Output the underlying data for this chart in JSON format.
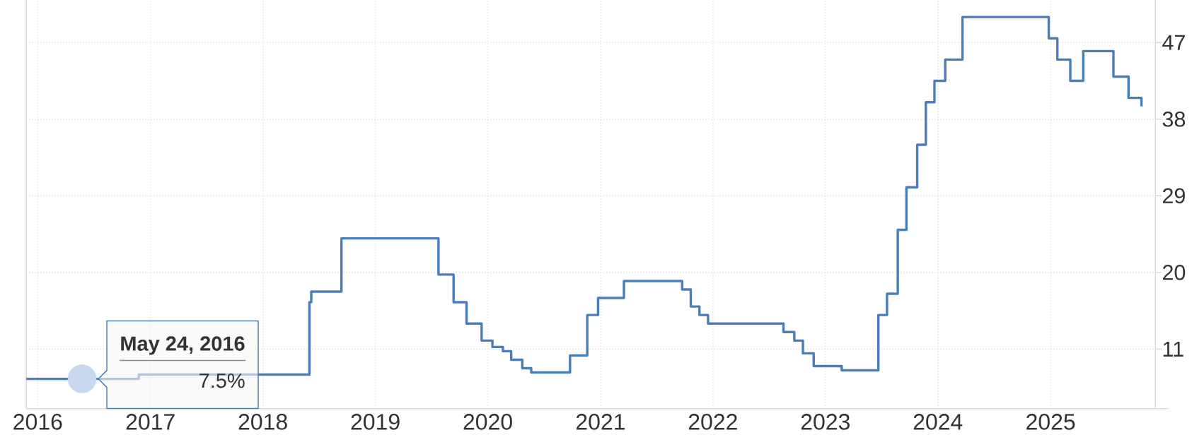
{
  "chart_data": {
    "type": "step",
    "xlim": [
      "2015-11-25",
      "2025-12-07"
    ],
    "xticks": [
      "2016",
      "2017",
      "2018",
      "2019",
      "2020",
      "2021",
      "2022",
      "2023",
      "2024",
      "2025"
    ],
    "ylim": [
      4,
      52
    ],
    "yticks": [
      11,
      20,
      29,
      38,
      47
    ],
    "grid": true,
    "series": [
      {
        "color": "#4a7ebb",
        "marker": "none",
        "line_style": "solid",
        "x": [
          "2015-11-25",
          "2016-11-24",
          "2018-06-01",
          "2018-06-07",
          "2018-09-13",
          "2019-07-25",
          "2019-09-12",
          "2019-10-24",
          "2019-12-12",
          "2020-01-16",
          "2020-02-19",
          "2020-03-17",
          "2020-04-22",
          "2020-05-21",
          "2020-09-24",
          "2020-11-19",
          "2020-12-24",
          "2021-03-18",
          "2021-09-23",
          "2021-10-21",
          "2021-11-18",
          "2021-12-16",
          "2022-08-18",
          "2022-09-22",
          "2022-10-20",
          "2022-11-24",
          "2023-02-23",
          "2023-06-22",
          "2023-07-20",
          "2023-08-24",
          "2023-09-21",
          "2023-10-26",
          "2023-11-23",
          "2023-12-21",
          "2024-01-25",
          "2024-03-21",
          "2024-12-26",
          "2025-01-23",
          "2025-03-06",
          "2025-04-17",
          "2025-07-24",
          "2025-09-11",
          "2025-10-23"
        ],
        "values": [
          7.5,
          8,
          16.5,
          17.75,
          24,
          19.75,
          16.5,
          14,
          12,
          11.25,
          10.75,
          9.75,
          8.75,
          8.25,
          10.25,
          15,
          17,
          19,
          18,
          16,
          15,
          14,
          13,
          12,
          10.5,
          9,
          8.5,
          15,
          17.5,
          25,
          30,
          35,
          40,
          42.5,
          45,
          50,
          47.5,
          45,
          42.5,
          46,
          43,
          40.5,
          39.5
        ]
      },
      {
        "type": "scatter",
        "color": "#c6d7ee",
        "marker": "circle",
        "x": [
          "2016-05-24"
        ],
        "values": [
          7.5
        ]
      }
    ],
    "annotations": [
      {
        "text": "May 24, 2016",
        "x": "2016-05-24",
        "y": 7.5
      },
      "7.5%"
    ]
  }
}
